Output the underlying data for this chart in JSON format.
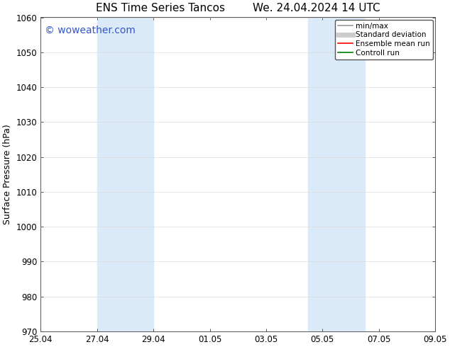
{
  "title_left": "ENS Time Series Tancos",
  "title_right": "We. 24.04.2024 14 UTC",
  "ylabel": "Surface Pressure (hPa)",
  "ylim": [
    970,
    1060
  ],
  "yticks": [
    970,
    980,
    990,
    1000,
    1010,
    1020,
    1030,
    1040,
    1050,
    1060
  ],
  "xtick_labels": [
    "25.04",
    "27.04",
    "29.04",
    "01.05",
    "03.05",
    "05.05",
    "07.05",
    "09.05"
  ],
  "xtick_positions_days": [
    0,
    2,
    4,
    6,
    8,
    10,
    12,
    14
  ],
  "x_total_days": 14,
  "shaded_bands": [
    {
      "x_start_days": 2,
      "x_end_days": 4
    },
    {
      "x_start_days": 9.5,
      "x_end_days": 11.5
    }
  ],
  "shade_color": "#daeaf8",
  "shade_alpha": 1.0,
  "watermark_text": "© woweather.com",
  "watermark_color": "#3355cc",
  "watermark_fontsize": 10,
  "legend_entries": [
    {
      "label": "min/max",
      "color": "#999999",
      "lw": 1.2,
      "linestyle": "-"
    },
    {
      "label": "Standard deviation",
      "color": "#cccccc",
      "lw": 5,
      "linestyle": "-"
    },
    {
      "label": "Ensemble mean run",
      "color": "red",
      "lw": 1.2,
      "linestyle": "-"
    },
    {
      "label": "Controll run",
      "color": "green",
      "lw": 1.2,
      "linestyle": "-"
    }
  ],
  "bg_color": "#ffffff",
  "title_fontsize": 11,
  "axis_fontsize": 9,
  "tick_fontsize": 8.5,
  "grid_color": "#dddddd",
  "spine_color": "#555555"
}
